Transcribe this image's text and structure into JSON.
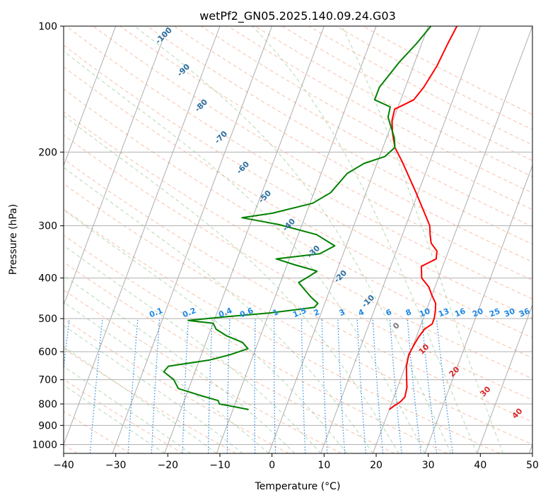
{
  "chart_data": {
    "type": "line",
    "title": "wetPf2_GN05.2025.140.09.24.G03",
    "xlabel": "Temperature (°C)",
    "ylabel": "Pressure (hPa)",
    "xlim": [
      -40,
      50
    ],
    "ylim": [
      1050,
      100
    ],
    "y_scale": "log",
    "grid": true,
    "x_ticks": [
      "−40",
      "−30",
      "−20",
      "−10",
      "0",
      "10",
      "20",
      "30",
      "40",
      "50"
    ],
    "y_ticks": [
      "100",
      "200",
      "300",
      "400",
      "500",
      "600",
      "700",
      "800",
      "900",
      "1000"
    ],
    "series": [
      {
        "name": "",
        "color": "#ff0000",
        "points": [
          [
            5.5,
            100
          ],
          [
            5.0,
            110
          ],
          [
            4.5,
            125
          ],
          [
            3.5,
            140
          ],
          [
            2.5,
            150
          ],
          [
            -0.5,
            158
          ],
          [
            -0.2,
            168
          ],
          [
            0.8,
            180
          ],
          [
            2.3,
            195
          ],
          [
            4.6,
            210
          ],
          [
            7.2,
            230
          ],
          [
            9.6,
            250
          ],
          [
            11.2,
            265
          ],
          [
            13.2,
            285
          ],
          [
            14.6,
            300
          ],
          [
            15.3,
            315
          ],
          [
            16.1,
            330
          ],
          [
            17.8,
            345
          ],
          [
            18.2,
            360
          ],
          [
            15.9,
            375
          ],
          [
            16.8,
            400
          ],
          [
            18.8,
            420
          ],
          [
            20.0,
            440
          ],
          [
            21.3,
            460
          ],
          [
            21.8,
            480
          ],
          [
            22.1,
            500
          ],
          [
            22.1,
            515
          ],
          [
            21.0,
            530
          ],
          [
            20.4,
            555
          ],
          [
            20.1,
            580
          ],
          [
            19.8,
            610
          ],
          [
            20.2,
            650
          ],
          [
            21.0,
            690
          ],
          [
            21.8,
            730
          ],
          [
            22.1,
            770
          ],
          [
            21.6,
            790
          ],
          [
            20.6,
            810
          ],
          [
            20.0,
            825
          ]
        ]
      },
      {
        "name": "",
        "color": "#008000",
        "points": [
          [
            0.5,
            100
          ],
          [
            -1.0,
            110
          ],
          [
            -3.0,
            122
          ],
          [
            -5.0,
            140
          ],
          [
            -5.0,
            150
          ],
          [
            -1.5,
            156
          ],
          [
            -1.2,
            165
          ],
          [
            1.5,
            185
          ],
          [
            2.3,
            195
          ],
          [
            1.0,
            205
          ],
          [
            -2.5,
            213
          ],
          [
            -5.0,
            225
          ],
          [
            -6.8,
            250
          ],
          [
            -9.5,
            265
          ],
          [
            -16.5,
            280
          ],
          [
            -22.0,
            287
          ],
          [
            -14.5,
            298
          ],
          [
            -6.5,
            315
          ],
          [
            -2.2,
            335
          ],
          [
            -4.5,
            350
          ],
          [
            -12.5,
            360
          ],
          [
            -8.5,
            372
          ],
          [
            -3.8,
            385
          ],
          [
            -4.8,
            395
          ],
          [
            -6.5,
            410
          ],
          [
            -5.0,
            425
          ],
          [
            -3.0,
            445
          ],
          [
            -1.3,
            460
          ],
          [
            -1.7,
            470
          ],
          [
            -10.0,
            485
          ],
          [
            -18.0,
            495
          ],
          [
            -25.0,
            505
          ],
          [
            -20.0,
            513
          ],
          [
            -19.0,
            530
          ],
          [
            -16.5,
            550
          ],
          [
            -13.0,
            570
          ],
          [
            -11.5,
            590
          ],
          [
            -14.5,
            610
          ],
          [
            -18.0,
            628
          ],
          [
            -25.5,
            650
          ],
          [
            -26.0,
            670
          ],
          [
            -23.5,
            700
          ],
          [
            -22.0,
            735
          ],
          [
            -17.0,
            765
          ],
          [
            -13.5,
            785
          ],
          [
            -13.0,
            800
          ],
          [
            -10.0,
            812
          ],
          [
            -7.0,
            825
          ]
        ]
      }
    ],
    "dry_adiabat_labels": [
      "-100",
      "-90",
      "-80",
      "-70",
      "-60",
      "-50",
      "-40",
      "-30",
      "-20",
      "-10",
      "0",
      "10",
      "20",
      "30",
      "40"
    ],
    "mixing_ratio_labels": [
      "0.1",
      "0.2",
      "0.4",
      "0.6",
      "1",
      "1.5",
      "2",
      "3",
      "4",
      "6",
      "8",
      "10",
      "13",
      "16",
      "20",
      "25",
      "30",
      "36"
    ],
    "mixing_ratio_values": [
      0.1,
      0.2,
      0.4,
      0.6,
      1,
      1.5,
      2,
      3,
      4,
      6,
      8,
      10,
      13,
      16,
      20,
      25,
      30,
      36
    ],
    "colors": {
      "temperature": "#ff0000",
      "dewpoint": "#008000",
      "isotherm": "#999999",
      "dry_adiabat": "#f4a582",
      "moist_adiabat": "#7fbf7f",
      "mixing_ratio": "#1e88e5",
      "dry_label_cold": "#2b6ea0",
      "dry_label_warm": "#d62728"
    }
  }
}
